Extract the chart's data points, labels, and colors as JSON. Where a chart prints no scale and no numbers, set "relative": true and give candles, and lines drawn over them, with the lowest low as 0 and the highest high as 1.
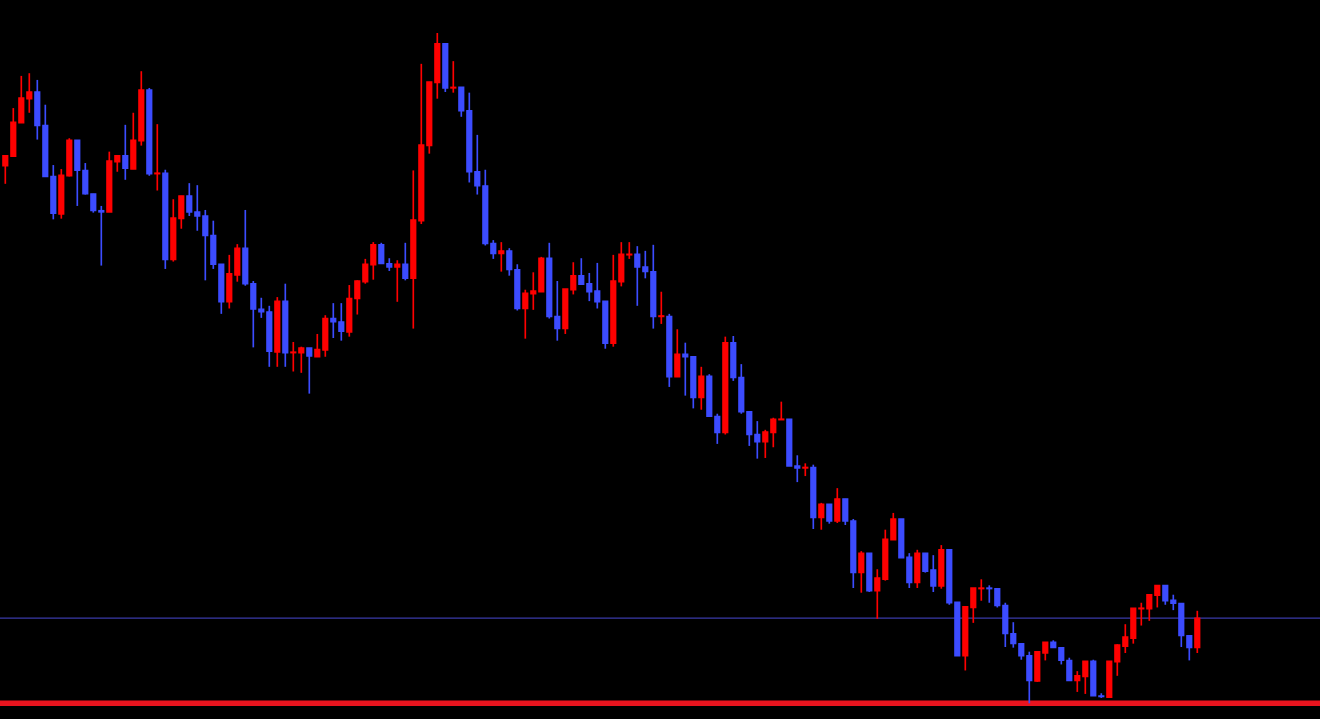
{
  "chart_data": {
    "type": "candlestick",
    "relative": true,
    "categories": [
      null,
      null,
      null,
      null,
      null,
      null,
      null,
      null,
      null,
      null,
      null,
      null,
      null,
      null,
      null,
      null,
      null,
      null,
      null,
      null,
      null,
      null,
      null,
      null,
      null,
      null,
      null,
      null,
      null,
      null,
      null,
      null,
      null,
      null,
      null,
      null,
      null,
      null,
      null,
      null,
      null,
      null,
      null,
      null,
      null,
      null,
      null,
      null,
      null,
      null,
      null,
      null,
      null,
      null,
      null,
      null,
      null,
      null,
      null,
      null,
      null,
      null,
      null,
      null,
      null,
      null,
      null,
      null,
      null,
      null,
      null,
      null,
      null,
      null,
      null,
      null,
      null,
      null,
      null,
      null,
      null,
      null,
      null,
      null,
      null,
      null,
      null,
      null,
      null,
      null,
      null,
      null,
      null,
      null,
      null,
      null,
      null,
      null,
      null,
      null,
      null,
      null,
      null,
      null,
      null,
      null,
      null,
      null,
      null,
      null,
      null,
      null,
      null,
      null,
      null,
      null,
      null,
      null,
      null,
      null,
      null,
      null,
      null,
      null,
      null,
      null,
      null,
      null,
      null,
      null,
      null,
      null,
      null,
      null,
      null,
      null,
      null,
      null,
      null,
      null,
      null,
      null,
      null,
      null,
      null,
      null,
      null,
      null,
      null,
      null
    ],
    "ohlc": [
      [
        0.802,
        0.817,
        0.775,
        0.817
      ],
      [
        0.816,
        0.888,
        0.816,
        0.867
      ],
      [
        0.866,
        0.936,
        0.866,
        0.903
      ],
      [
        0.902,
        0.94,
        0.881,
        0.912
      ],
      [
        0.912,
        0.93,
        0.841,
        0.862
      ],
      [
        0.862,
        0.893,
        0.786,
        0.786
      ],
      [
        0.786,
        0.803,
        0.722,
        0.731
      ],
      [
        0.73,
        0.797,
        0.723,
        0.788
      ],
      [
        0.787,
        0.843,
        0.786,
        0.84
      ],
      [
        0.84,
        0.84,
        0.742,
        0.795
      ],
      [
        0.795,
        0.806,
        0.759,
        0.76
      ],
      [
        0.76,
        0.76,
        0.732,
        0.735
      ],
      [
        0.735,
        0.742,
        0.653,
        0.733
      ],
      [
        0.733,
        0.823,
        0.733,
        0.809
      ],
      [
        0.808,
        0.817,
        0.793,
        0.817
      ],
      [
        0.817,
        0.863,
        0.781,
        0.798
      ],
      [
        0.797,
        0.881,
        0.797,
        0.84
      ],
      [
        0.839,
        0.943,
        0.832,
        0.915
      ],
      [
        0.915,
        0.918,
        0.787,
        0.79
      ],
      [
        0.79,
        0.864,
        0.765,
        0.791
      ],
      [
        0.791,
        0.796,
        0.648,
        0.662
      ],
      [
        0.662,
        0.752,
        0.659,
        0.724
      ],
      [
        0.723,
        0.757,
        0.708,
        0.757
      ],
      [
        0.757,
        0.776,
        0.727,
        0.733
      ],
      [
        0.733,
        0.773,
        0.705,
        0.727
      ],
      [
        0.727,
        0.736,
        0.631,
        0.698
      ],
      [
        0.698,
        0.72,
        0.648,
        0.655
      ],
      [
        0.655,
        0.655,
        0.581,
        0.599
      ],
      [
        0.599,
        0.669,
        0.589,
        0.641
      ],
      [
        0.639,
        0.685,
        0.629,
        0.679
      ],
      [
        0.679,
        0.736,
        0.623,
        0.626
      ],
      [
        0.626,
        0.63,
        0.531,
        0.588
      ],
      [
        0.588,
        0.605,
        0.575,
        0.584
      ],
      [
        0.584,
        0.593,
        0.502,
        0.525
      ],
      [
        0.524,
        0.606,
        0.502,
        0.6
      ],
      [
        0.6,
        0.626,
        0.502,
        0.523
      ],
      [
        0.523,
        0.539,
        0.495,
        0.524
      ],
      [
        0.523,
        0.532,
        0.493,
        0.53
      ],
      [
        0.53,
        0.53,
        0.462,
        0.518
      ],
      [
        0.517,
        0.551,
        0.517,
        0.528
      ],
      [
        0.527,
        0.579,
        0.517,
        0.574
      ],
      [
        0.574,
        0.597,
        0.545,
        0.569
      ],
      [
        0.569,
        0.597,
        0.541,
        0.555
      ],
      [
        0.554,
        0.624,
        0.547,
        0.604
      ],
      [
        0.604,
        0.631,
        0.58,
        0.63
      ],
      [
        0.629,
        0.663,
        0.626,
        0.655
      ],
      [
        0.654,
        0.688,
        0.632,
        0.684
      ],
      [
        0.684,
        0.687,
        0.656,
        0.656
      ],
      [
        0.656,
        0.664,
        0.645,
        0.651
      ],
      [
        0.651,
        0.661,
        0.599,
        0.655
      ],
      [
        0.655,
        0.687,
        0.631,
        0.634
      ],
      [
        0.634,
        0.795,
        0.559,
        0.721
      ],
      [
        0.72,
        0.954,
        0.715,
        0.833
      ],
      [
        0.832,
        0.927,
        0.82,
        0.927
      ],
      [
        0.926,
        1.0,
        0.902,
        0.984
      ],
      [
        0.984,
        0.984,
        0.912,
        0.918
      ],
      [
        0.918,
        0.958,
        0.911,
        0.919
      ],
      [
        0.919,
        0.919,
        0.875,
        0.884
      ],
      [
        0.884,
        0.911,
        0.777,
        0.793
      ],
      [
        0.793,
        0.848,
        0.759,
        0.772
      ],
      [
        0.772,
        0.796,
        0.683,
        0.686
      ],
      [
        0.686,
        0.691,
        0.663,
        0.671
      ],
      [
        0.671,
        0.688,
        0.644,
        0.675
      ],
      [
        0.675,
        0.679,
        0.638,
        0.647
      ],
      [
        0.647,
        0.655,
        0.586,
        0.589
      ],
      [
        0.589,
        0.617,
        0.544,
        0.612
      ],
      [
        0.611,
        0.643,
        0.587,
        0.615
      ],
      [
        0.614,
        0.666,
        0.614,
        0.664
      ],
      [
        0.664,
        0.687,
        0.574,
        0.577
      ],
      [
        0.577,
        0.63,
        0.541,
        0.559
      ],
      [
        0.559,
        0.618,
        0.551,
        0.618
      ],
      [
        0.617,
        0.658,
        0.61,
        0.638
      ],
      [
        0.638,
        0.664,
        0.625,
        0.625
      ],
      [
        0.626,
        0.642,
        0.6,
        0.614
      ],
      [
        0.615,
        0.657,
        0.589,
        0.599
      ],
      [
        0.6,
        0.6,
        0.529,
        0.537
      ],
      [
        0.537,
        0.669,
        0.532,
        0.63
      ],
      [
        0.629,
        0.688,
        0.622,
        0.67
      ],
      [
        0.669,
        0.688,
        0.663,
        0.67
      ],
      [
        0.67,
        0.682,
        0.593,
        0.651
      ],
      [
        0.651,
        0.675,
        0.634,
        0.644
      ],
      [
        0.644,
        0.684,
        0.559,
        0.577
      ],
      [
        0.577,
        0.614,
        0.566,
        0.578
      ],
      [
        0.577,
        0.581,
        0.472,
        0.487
      ],
      [
        0.487,
        0.558,
        0.487,
        0.521
      ],
      [
        0.521,
        0.538,
        0.459,
        0.517
      ],
      [
        0.517,
        0.517,
        0.44,
        0.456
      ],
      [
        0.456,
        0.502,
        0.438,
        0.488
      ],
      [
        0.488,
        0.491,
        0.428,
        0.428
      ],
      [
        0.428,
        0.432,
        0.387,
        0.404
      ],
      [
        0.404,
        0.547,
        0.401,
        0.538
      ],
      [
        0.538,
        0.548,
        0.481,
        0.486
      ],
      [
        0.486,
        0.506,
        0.432,
        0.435
      ],
      [
        0.435,
        0.435,
        0.384,
        0.401
      ],
      [
        0.401,
        0.421,
        0.365,
        0.39
      ],
      [
        0.39,
        0.408,
        0.366,
        0.405
      ],
      [
        0.404,
        0.426,
        0.382,
        0.424
      ],
      [
        0.423,
        0.45,
        0.423,
        0.424
      ],
      [
        0.424,
        0.424,
        0.354,
        0.354
      ],
      [
        0.354,
        0.37,
        0.33,
        0.351
      ],
      [
        0.351,
        0.358,
        0.339,
        0.352
      ],
      [
        0.352,
        0.356,
        0.26,
        0.277
      ],
      [
        0.277,
        0.299,
        0.259,
        0.297
      ],
      [
        0.297,
        0.297,
        0.268,
        0.272
      ],
      [
        0.272,
        0.321,
        0.269,
        0.305
      ],
      [
        0.305,
        0.305,
        0.266,
        0.272
      ],
      [
        0.272,
        0.275,
        0.172,
        0.195
      ],
      [
        0.195,
        0.227,
        0.165,
        0.224
      ],
      [
        0.224,
        0.224,
        0.166,
        0.168
      ],
      [
        0.168,
        0.2,
        0.126,
        0.187
      ],
      [
        0.185,
        0.259,
        0.183,
        0.245
      ],
      [
        0.244,
        0.284,
        0.244,
        0.275
      ],
      [
        0.275,
        0.275,
        0.217,
        0.217
      ],
      [
        0.218,
        0.224,
        0.172,
        0.18
      ],
      [
        0.18,
        0.229,
        0.172,
        0.224
      ],
      [
        0.224,
        0.224,
        0.195,
        0.197
      ],
      [
        0.199,
        0.221,
        0.166,
        0.175
      ],
      [
        0.175,
        0.236,
        0.171,
        0.229
      ],
      [
        0.229,
        0.229,
        0.147,
        0.15
      ],
      [
        0.151,
        0.151,
        0.071,
        0.071
      ],
      [
        0.071,
        0.144,
        0.049,
        0.144
      ],
      [
        0.143,
        0.172,
        0.12,
        0.172
      ],
      [
        0.171,
        0.185,
        0.153,
        0.172
      ],
      [
        0.172,
        0.176,
        0.15,
        0.171
      ],
      [
        0.171,
        0.171,
        0.143,
        0.146
      ],
      [
        0.146,
        0.15,
        0.084,
        0.104
      ],
      [
        0.104,
        0.121,
        0.083,
        0.089
      ],
      [
        0.089,
        0.089,
        0.065,
        0.071
      ],
      [
        0.071,
        0.077,
        0.0,
        0.034
      ],
      [
        0.033,
        0.077,
        0.032,
        0.077
      ],
      [
        0.075,
        0.091,
        0.064,
        0.091
      ],
      [
        0.091,
        0.094,
        0.083,
        0.083
      ],
      [
        0.083,
        0.083,
        0.058,
        0.064
      ],
      [
        0.064,
        0.068,
        0.034,
        0.034
      ],
      [
        0.034,
        0.048,
        0.017,
        0.041
      ],
      [
        0.04,
        0.063,
        0.014,
        0.063
      ],
      [
        0.063,
        0.065,
        0.011,
        0.011
      ],
      [
        0.011,
        0.015,
        0.008,
        0.01
      ],
      [
        0.009,
        0.063,
        0.009,
        0.063
      ],
      [
        0.062,
        0.088,
        0.041,
        0.087
      ],
      [
        0.085,
        0.118,
        0.075,
        0.099
      ],
      [
        0.097,
        0.142,
        0.089,
        0.142
      ],
      [
        0.141,
        0.15,
        0.116,
        0.142
      ],
      [
        0.141,
        0.163,
        0.123,
        0.162
      ],
      [
        0.161,
        0.176,
        0.143,
        0.176
      ],
      [
        0.176,
        0.176,
        0.147,
        0.153
      ],
      [
        0.154,
        0.162,
        0.139,
        0.149
      ],
      [
        0.149,
        0.149,
        0.084,
        0.101
      ],
      [
        0.101,
        0.101,
        0.064,
        0.083
      ],
      [
        0.083,
        0.138,
        0.075,
        0.127
      ]
    ],
    "colors": [
      "#ff0000",
      "#ff0000",
      "#ff0000",
      "#ff0000",
      "#3c4cff",
      "#3c4cff",
      "#3c4cff",
      "#ff0000",
      "#ff0000",
      "#3c4cff",
      "#3c4cff",
      "#3c4cff",
      "#3c4cff",
      "#ff0000",
      "#ff0000",
      "#3c4cff",
      "#ff0000",
      "#ff0000",
      "#3c4cff",
      "#ff0000",
      "#3c4cff",
      "#ff0000",
      "#ff0000",
      "#3c4cff",
      "#3c4cff",
      "#3c4cff",
      "#3c4cff",
      "#3c4cff",
      "#ff0000",
      "#ff0000",
      "#3c4cff",
      "#3c4cff",
      "#3c4cff",
      "#3c4cff",
      "#ff0000",
      "#3c4cff",
      "#ff0000",
      "#ff0000",
      "#3c4cff",
      "#ff0000",
      "#ff0000",
      "#3c4cff",
      "#3c4cff",
      "#ff0000",
      "#ff0000",
      "#ff0000",
      "#ff0000",
      "#3c4cff",
      "#3c4cff",
      "#ff0000",
      "#3c4cff",
      "#ff0000",
      "#ff0000",
      "#ff0000",
      "#ff0000",
      "#3c4cff",
      "#ff0000",
      "#3c4cff",
      "#3c4cff",
      "#3c4cff",
      "#3c4cff",
      "#3c4cff",
      "#ff0000",
      "#3c4cff",
      "#3c4cff",
      "#ff0000",
      "#ff0000",
      "#ff0000",
      "#3c4cff",
      "#3c4cff",
      "#ff0000",
      "#ff0000",
      "#3c4cff",
      "#3c4cff",
      "#3c4cff",
      "#3c4cff",
      "#ff0000",
      "#ff0000",
      "#ff0000",
      "#3c4cff",
      "#3c4cff",
      "#3c4cff",
      "#ff0000",
      "#3c4cff",
      "#ff0000",
      "#3c4cff",
      "#3c4cff",
      "#ff0000",
      "#3c4cff",
      "#3c4cff",
      "#ff0000",
      "#3c4cff",
      "#3c4cff",
      "#3c4cff",
      "#3c4cff",
      "#ff0000",
      "#ff0000",
      "#ff0000",
      "#3c4cff",
      "#3c4cff",
      "#ff0000",
      "#3c4cff",
      "#ff0000",
      "#3c4cff",
      "#ff0000",
      "#3c4cff",
      "#3c4cff",
      "#ff0000",
      "#3c4cff",
      "#ff0000",
      "#ff0000",
      "#ff0000",
      "#3c4cff",
      "#3c4cff",
      "#ff0000",
      "#3c4cff",
      "#3c4cff",
      "#ff0000",
      "#3c4cff",
      "#3c4cff",
      "#ff0000",
      "#ff0000",
      "#ff0000",
      "#3c4cff",
      "#3c4cff",
      "#3c4cff",
      "#3c4cff",
      "#3c4cff",
      "#3c4cff",
      "#ff0000",
      "#ff0000",
      "#3c4cff",
      "#3c4cff",
      "#3c4cff",
      "#ff0000",
      "#ff0000",
      "#3c4cff",
      "#3c4cff",
      "#ff0000",
      "#ff0000",
      "#ff0000",
      "#ff0000",
      "#ff0000",
      "#ff0000",
      "#ff0000",
      "#3c4cff",
      "#3c4cff",
      "#3c4cff",
      "#3c4cff",
      "#ff0000"
    ],
    "ref_lines": [
      {
        "axis": "y",
        "value": 0.127,
        "color": "#3a3aa8"
      },
      {
        "axis": "y",
        "value": 0,
        "color": "#e8141e"
      }
    ]
  }
}
